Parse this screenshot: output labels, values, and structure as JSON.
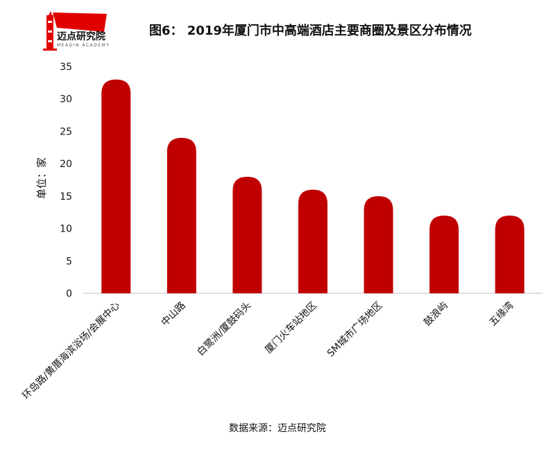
{
  "logo": {
    "name": "迈点研究院",
    "subtitle": "MEADIN ACADEMY"
  },
  "chart_data": {
    "type": "bar",
    "title": "图6： 2019年厦门市中高端酒店主要商圈及景区分布情况",
    "ylabel": "单位：家",
    "xlabel": "",
    "categories": [
      "环岛路/黄厝海滨浴场/会展中心",
      "中山路",
      "白鹭洲/厦鼓码头",
      "厦门火车站地区",
      "SM城市广场地区",
      "鼓浪屿",
      "五缘湾"
    ],
    "series": [
      {
        "values": [
          33,
          24,
          18,
          16,
          15,
          12,
          12
        ]
      }
    ],
    "ylim": [
      0,
      35
    ],
    "yticks": [
      0,
      5,
      10,
      15,
      20,
      25,
      30,
      35
    ],
    "grid": false,
    "legend": "none",
    "colors": {
      "bar": "#c00000",
      "axis": "#bfbfbf",
      "text": "#111111"
    }
  },
  "source": "数据来源：迈点研究院"
}
